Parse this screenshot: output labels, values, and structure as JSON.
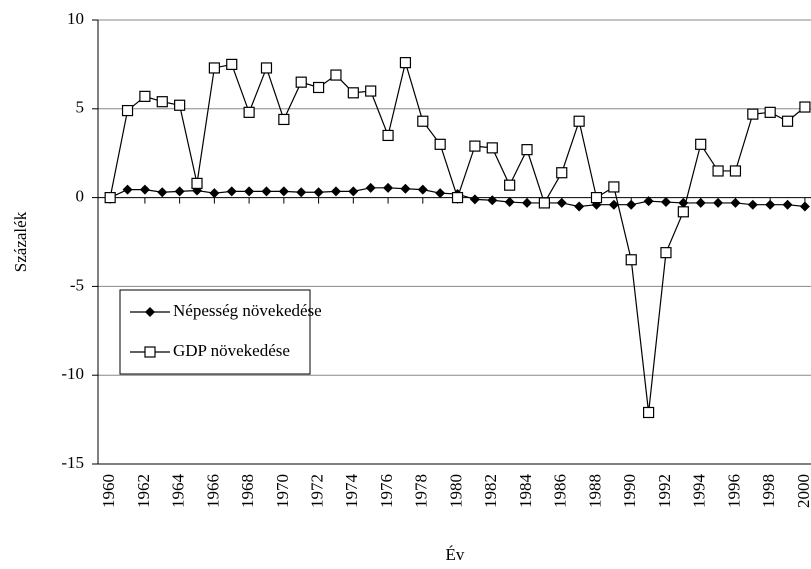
{
  "chart_data": {
    "type": "line",
    "y_label": "Százalék",
    "x_label": "Év",
    "x": [
      1960,
      1961,
      1962,
      1963,
      1964,
      1965,
      1966,
      1967,
      1968,
      1969,
      1970,
      1971,
      1972,
      1973,
      1974,
      1975,
      1976,
      1977,
      1978,
      1979,
      1980,
      1981,
      1982,
      1983,
      1984,
      1985,
      1986,
      1987,
      1988,
      1989,
      1990,
      1991,
      1992,
      1993,
      1994,
      1995,
      1996,
      1997,
      1998,
      1999,
      2000
    ],
    "series": [
      {
        "name": "Népesség növekedése",
        "color": "#000000",
        "marker": "diamond",
        "values": [
          0,
          0.45,
          0.45,
          0.3,
          0.35,
          0.4,
          0.25,
          0.35,
          0.35,
          0.35,
          0.35,
          0.3,
          0.3,
          0.35,
          0.35,
          0.55,
          0.55,
          0.5,
          0.45,
          0.25,
          0.2,
          -0.1,
          -0.15,
          -0.25,
          -0.3,
          -0.3,
          -0.3,
          -0.5,
          -0.4,
          -0.4,
          -0.4,
          -0.2,
          -0.25,
          -0.3,
          -0.3,
          -0.3,
          -0.3,
          -0.4,
          -0.4,
          -0.4,
          -0.5
        ]
      },
      {
        "name": "GDP növekedése",
        "color": "#000000",
        "marker": "square",
        "values": [
          0,
          4.9,
          5.7,
          5.4,
          5.2,
          0.8,
          7.3,
          7.5,
          4.8,
          7.3,
          4.4,
          6.5,
          6.2,
          6.9,
          5.9,
          6.0,
          3.5,
          7.6,
          4.3,
          3.0,
          0,
          2.9,
          2.8,
          0.7,
          2.7,
          -0.3,
          1.4,
          4.3,
          0,
          0.6,
          -3.5,
          -12.1,
          -3.1,
          -0.8,
          3.0,
          1.5,
          1.5,
          4.7,
          4.8,
          4.3,
          5.1
        ]
      }
    ],
    "xlim": [
      1959.3,
      2000.35
    ],
    "xticks": [
      1960,
      1962,
      1964,
      1966,
      1968,
      1970,
      1972,
      1974,
      1976,
      1978,
      1980,
      1982,
      1984,
      1986,
      1988,
      1990,
      1992,
      1994,
      1996,
      1998,
      2000
    ],
    "ylim": [
      -15,
      10
    ],
    "yticks": [
      -15,
      -10,
      -5,
      0,
      5,
      10
    ],
    "grid": true,
    "legend": "lower-left"
  }
}
